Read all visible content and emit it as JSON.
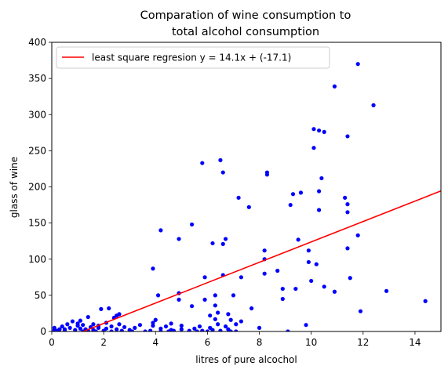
{
  "chart_data": {
    "type": "scatter",
    "title_lines": [
      "Comparation of wine consumption to",
      "total alcohol consumption"
    ],
    "xlabel": "litres of pure alcochol",
    "ylabel": "glass of wine",
    "xlim": [
      0,
      15
    ],
    "ylim": [
      0,
      400
    ],
    "xticks": [
      0,
      2,
      4,
      6,
      8,
      10,
      12,
      14
    ],
    "yticks": [
      0,
      50,
      100,
      150,
      200,
      250,
      300,
      350,
      400
    ],
    "grid": false,
    "legend_position": "top-left",
    "colors": {
      "points": "#0000ff",
      "line": "#ff0000"
    },
    "regression": {
      "label": "least square regresion y = 14.1x + (-17.1)",
      "slope": 14.1,
      "intercept": -17.1
    },
    "points": [
      [
        0.1,
        0
      ],
      [
        0.1,
        2
      ],
      [
        0.1,
        5
      ],
      [
        0.2,
        1
      ],
      [
        0.3,
        3
      ],
      [
        0.4,
        7
      ],
      [
        0.5,
        1
      ],
      [
        0.5,
        3
      ],
      [
        0.6,
        10
      ],
      [
        0.7,
        5
      ],
      [
        0.8,
        14
      ],
      [
        0.9,
        2
      ],
      [
        1.0,
        8
      ],
      [
        1.0,
        11
      ],
      [
        1.1,
        4
      ],
      [
        1.1,
        15
      ],
      [
        1.2,
        0
      ],
      [
        1.2,
        9
      ],
      [
        1.3,
        3
      ],
      [
        1.4,
        1
      ],
      [
        1.4,
        20
      ],
      [
        1.5,
        6
      ],
      [
        1.6,
        2
      ],
      [
        1.6,
        10
      ],
      [
        1.7,
        0
      ],
      [
        1.8,
        5
      ],
      [
        1.8,
        8
      ],
      [
        1.9,
        31
      ],
      [
        2.0,
        1
      ],
      [
        2.1,
        4
      ],
      [
        2.1,
        12
      ],
      [
        2.2,
        32
      ],
      [
        2.3,
        0
      ],
      [
        2.3,
        7
      ],
      [
        2.4,
        19
      ],
      [
        2.5,
        3
      ],
      [
        2.5,
        22
      ],
      [
        2.6,
        10
      ],
      [
        2.6,
        24
      ],
      [
        2.7,
        1
      ],
      [
        2.8,
        6
      ],
      [
        3.0,
        2
      ],
      [
        3.1,
        0
      ],
      [
        3.2,
        5
      ],
      [
        3.4,
        9
      ],
      [
        3.6,
        0
      ],
      [
        3.8,
        1
      ],
      [
        3.9,
        8
      ],
      [
        3.9,
        12
      ],
      [
        3.9,
        87
      ],
      [
        4.0,
        16
      ],
      [
        4.1,
        50
      ],
      [
        4.2,
        0
      ],
      [
        4.2,
        4
      ],
      [
        4.2,
        140
      ],
      [
        4.4,
        7
      ],
      [
        4.5,
        0
      ],
      [
        4.6,
        11
      ],
      [
        4.6,
        2
      ],
      [
        4.7,
        1
      ],
      [
        4.9,
        44
      ],
      [
        4.9,
        53
      ],
      [
        4.9,
        128
      ],
      [
        5.0,
        8
      ],
      [
        5.0,
        3
      ],
      [
        5.3,
        1
      ],
      [
        5.4,
        35
      ],
      [
        5.4,
        148
      ],
      [
        5.5,
        4
      ],
      [
        5.6,
        0
      ],
      [
        5.7,
        7
      ],
      [
        5.8,
        1
      ],
      [
        5.8,
        233
      ],
      [
        5.9,
        75
      ],
      [
        5.9,
        44
      ],
      [
        6.0,
        0
      ],
      [
        6.1,
        5
      ],
      [
        6.1,
        22
      ],
      [
        6.2,
        122
      ],
      [
        6.2,
        2
      ],
      [
        6.3,
        36
      ],
      [
        6.3,
        50
      ],
      [
        6.3,
        17
      ],
      [
        6.4,
        26
      ],
      [
        6.4,
        10
      ],
      [
        6.5,
        1
      ],
      [
        6.5,
        237
      ],
      [
        6.6,
        78
      ],
      [
        6.6,
        121
      ],
      [
        6.6,
        220
      ],
      [
        6.7,
        128
      ],
      [
        6.7,
        7
      ],
      [
        6.8,
        24
      ],
      [
        6.8,
        3
      ],
      [
        6.9,
        0
      ],
      [
        6.9,
        16
      ],
      [
        7.0,
        50
      ],
      [
        7.1,
        10
      ],
      [
        7.1,
        0
      ],
      [
        7.2,
        185
      ],
      [
        7.3,
        75
      ],
      [
        7.3,
        14
      ],
      [
        7.6,
        172
      ],
      [
        7.7,
        32
      ],
      [
        8.0,
        5
      ],
      [
        8.2,
        100
      ],
      [
        8.2,
        112
      ],
      [
        8.2,
        80
      ],
      [
        8.3,
        217
      ],
      [
        8.3,
        220
      ],
      [
        8.7,
        84
      ],
      [
        8.9,
        45
      ],
      [
        8.9,
        59
      ],
      [
        9.1,
        0
      ],
      [
        9.2,
        175
      ],
      [
        9.3,
        190
      ],
      [
        9.4,
        59
      ],
      [
        9.5,
        127
      ],
      [
        9.6,
        192
      ],
      [
        9.8,
        9
      ],
      [
        9.9,
        112
      ],
      [
        9.9,
        96
      ],
      [
        10.0,
        70
      ],
      [
        10.1,
        280
      ],
      [
        10.1,
        254
      ],
      [
        10.2,
        93
      ],
      [
        10.3,
        278
      ],
      [
        10.3,
        168
      ],
      [
        10.3,
        194
      ],
      [
        10.4,
        212
      ],
      [
        10.5,
        276
      ],
      [
        10.5,
        62
      ],
      [
        10.9,
        339
      ],
      [
        10.9,
        55
      ],
      [
        11.3,
        185
      ],
      [
        11.4,
        270
      ],
      [
        11.4,
        165
      ],
      [
        11.4,
        176
      ],
      [
        11.4,
        115
      ],
      [
        11.5,
        74
      ],
      [
        11.8,
        370
      ],
      [
        11.8,
        133
      ],
      [
        11.9,
        28
      ],
      [
        12.4,
        313
      ],
      [
        12.9,
        56
      ],
      [
        14.4,
        42
      ]
    ]
  }
}
